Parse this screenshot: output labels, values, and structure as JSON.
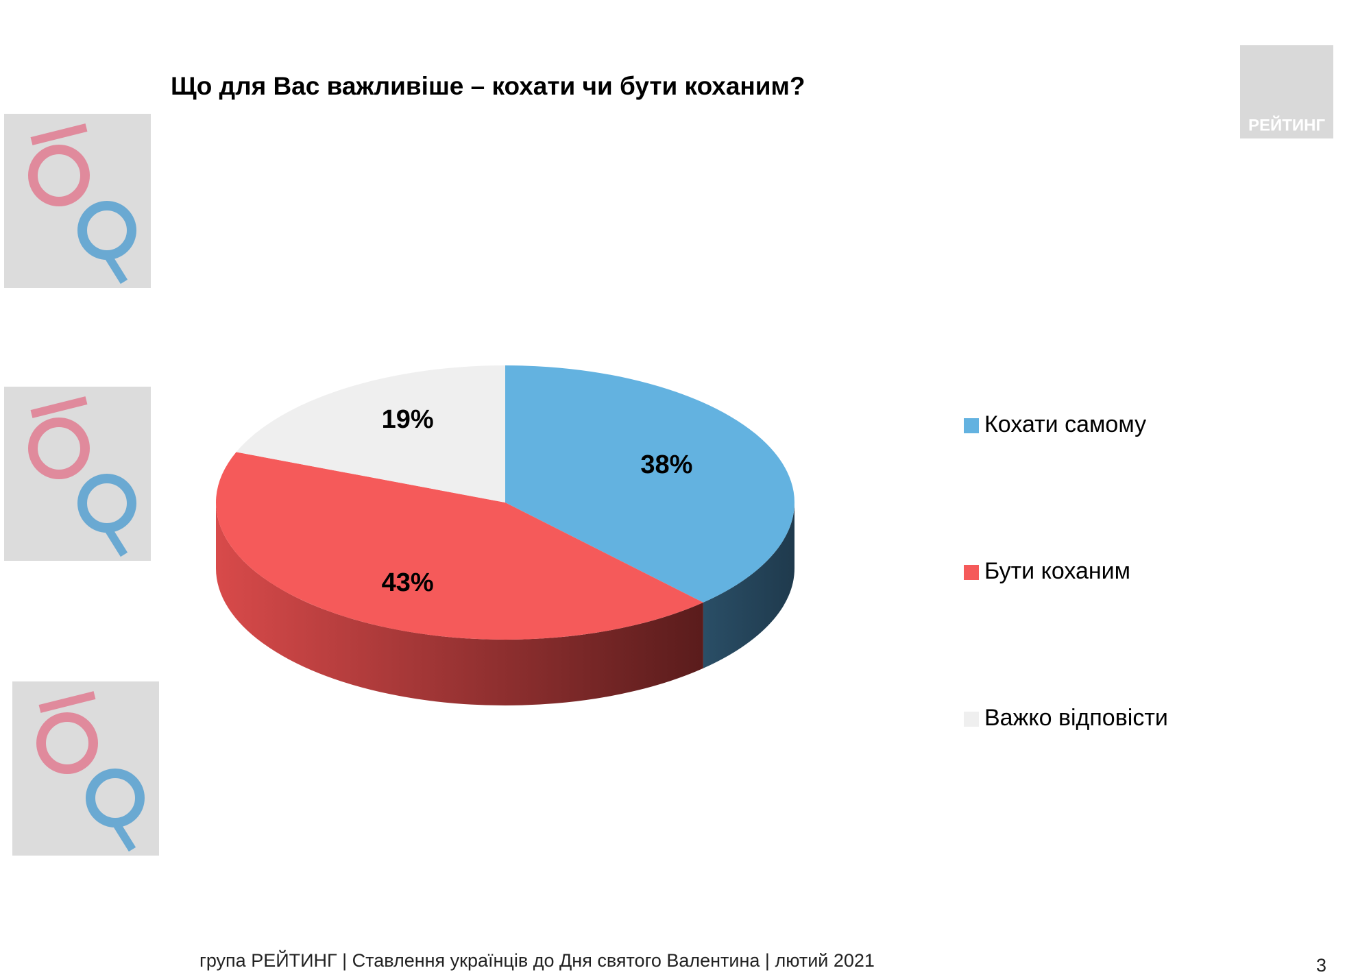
{
  "logo": "РЕЙТИНГ",
  "chart_data": {
    "type": "pie",
    "title": "Що для Вас важливіше – кохати чи бути коханим?",
    "categories": [
      "Кохати самому",
      "Бути коханим",
      "Важко відповісти"
    ],
    "values": [
      38,
      43,
      19
    ],
    "value_labels": [
      "38%",
      "43%",
      "19%"
    ],
    "colors": [
      "#63b2e0",
      "#f55a5a",
      "#efefef"
    ]
  },
  "footer": {
    "text": "група РЕЙТИНГ | Ставлення українців до Дня святого Валентина | лютий 2021",
    "page": "3"
  }
}
